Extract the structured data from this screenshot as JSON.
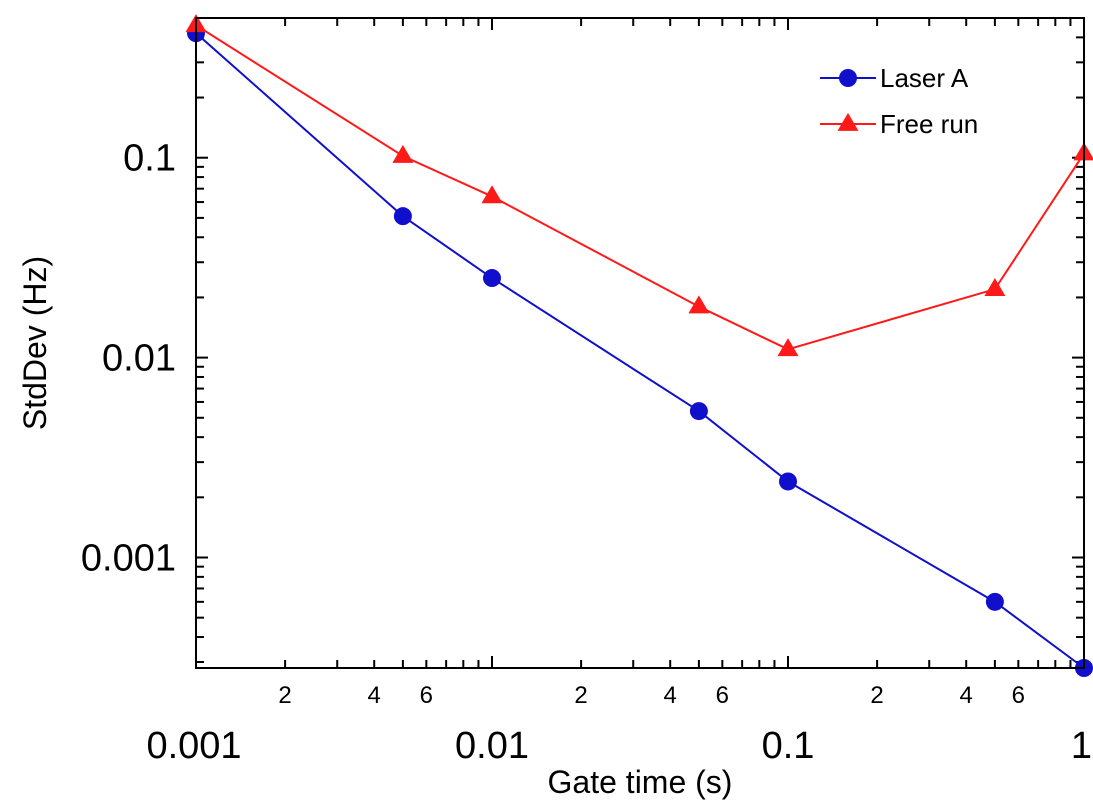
{
  "chart_data": {
    "type": "line",
    "title": "",
    "xlabel": "Gate time (s)",
    "ylabel": "StdDev (Hz)",
    "x_scale": "log",
    "y_scale": "log",
    "xlim": [
      0.001,
      1
    ],
    "ylim": [
      0.00028,
      0.5
    ],
    "grid": false,
    "legend_position": "top-right",
    "x_major_ticks": [
      {
        "value": 0.001,
        "label": "0.001"
      },
      {
        "value": 0.01,
        "label": "0.01"
      },
      {
        "value": 0.1,
        "label": "0.1"
      },
      {
        "value": 1,
        "label": "1"
      }
    ],
    "x_minor_labels": [
      {
        "value": 0.002,
        "label": "2"
      },
      {
        "value": 0.004,
        "label": "4"
      },
      {
        "value": 0.006,
        "label": "6"
      },
      {
        "value": 0.02,
        "label": "2"
      },
      {
        "value": 0.04,
        "label": "4"
      },
      {
        "value": 0.06,
        "label": "6"
      },
      {
        "value": 0.2,
        "label": "2"
      },
      {
        "value": 0.4,
        "label": "4"
      },
      {
        "value": 0.6,
        "label": "6"
      }
    ],
    "y_major_ticks": [
      {
        "value": 0.001,
        "label": "0.001"
      },
      {
        "value": 0.01,
        "label": "0.01"
      },
      {
        "value": 0.1,
        "label": "0.1"
      }
    ],
    "series": [
      {
        "name": "Laser A",
        "color": "#1010cc",
        "marker": "circle",
        "x": [
          0.001,
          0.005,
          0.01,
          0.05,
          0.1,
          0.5,
          1
        ],
        "y": [
          0.42,
          0.051,
          0.025,
          0.0054,
          0.0024,
          0.0006,
          0.00028
        ]
      },
      {
        "name": "Free run",
        "color": "#ff1a1a",
        "marker": "triangle",
        "x": [
          0.001,
          0.005,
          0.01,
          0.05,
          0.1,
          0.5,
          1
        ],
        "y": [
          0.46,
          0.102,
          0.064,
          0.018,
          0.011,
          0.022,
          0.105
        ]
      }
    ]
  }
}
